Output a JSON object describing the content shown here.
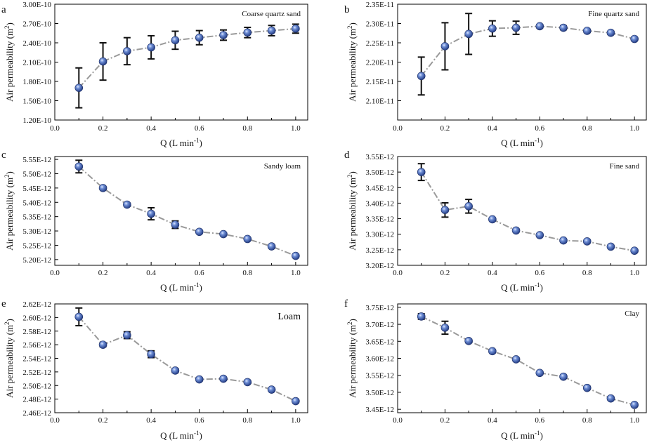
{
  "chart_data": [
    {
      "panel": "a",
      "type": "scatter",
      "title": "Coarse quartz sand",
      "xlabel": "Q (L min",
      "xlabel_sup": "-1",
      "ylabel": "Air permeability (m",
      "ylabel_sup": "2",
      "xlim": [
        0,
        1.05
      ],
      "xticks": [
        "0.0",
        "0.2",
        "0.4",
        "0.6",
        "0.8",
        "1.0"
      ],
      "ylim": [
        1.2e-10,
        3e-10
      ],
      "yticks": [
        "1.20E-10",
        "1.50E-10",
        "1.80E-10",
        "2.10E-10",
        "2.40E-10",
        "2.70E-10",
        "3.00E-10"
      ],
      "x": [
        0.1,
        0.2,
        0.3,
        0.4,
        0.5,
        0.6,
        0.7,
        0.8,
        0.9,
        1.0
      ],
      "y": [
        1.7e-10,
        2.11e-10,
        2.27e-10,
        2.33e-10,
        2.44e-10,
        2.48e-10,
        2.52e-10,
        2.56e-10,
        2.59e-10,
        2.62e-10
      ],
      "err": [
        3.1e-11,
        2.9e-11,
        2.1e-11,
        1.8e-11,
        1.4e-11,
        1.1e-11,
        8e-12,
        8e-12,
        8e-12,
        7e-12
      ],
      "legend_size": "small"
    },
    {
      "panel": "b",
      "type": "scatter",
      "title": "Fine quartz sand",
      "xlabel": "Q (L min",
      "xlabel_sup": "-1",
      "ylabel": "Air permeability (m",
      "ylabel_sup": "2",
      "xlim": [
        0,
        1.05
      ],
      "xticks": [
        "0.0",
        "0.2",
        "0.4",
        "0.6",
        "0.8",
        "1.0"
      ],
      "ylim": [
        2.05e-11,
        2.35e-11
      ],
      "yticks": [
        "2.10E-11",
        "2.15E-11",
        "2.20E-11",
        "2.25E-11",
        "2.30E-11",
        "2.35E-11"
      ],
      "x": [
        0.1,
        0.2,
        0.3,
        0.4,
        0.5,
        0.6,
        0.7,
        0.8,
        0.9,
        1.0
      ],
      "y": [
        2.164e-11,
        2.241e-11,
        2.273e-11,
        2.287e-11,
        2.289e-11,
        2.293e-11,
        2.289e-11,
        2.281e-11,
        2.276e-11,
        2.26e-11
      ],
      "err": [
        4.9e-13,
        6.1e-13,
        5.3e-13,
        2e-13,
        1.7e-13,
        4e-14,
        5e-14,
        4e-14,
        4e-14,
        4e-14
      ],
      "legend_size": "small"
    },
    {
      "panel": "c",
      "type": "scatter",
      "title": "Sandy loam",
      "xlabel": "Q (L min",
      "xlabel_sup": "-1",
      "ylabel": "Air permeability (m",
      "ylabel_sup": "2",
      "xlim": [
        0,
        1.05
      ],
      "xticks": [
        "0.0",
        "0.2",
        "0.4",
        "0.6",
        "0.8",
        "1.0"
      ],
      "ylim": [
        5.18e-12,
        5.56e-12
      ],
      "yticks": [
        "5.20E-12",
        "5.25E-12",
        "5.30E-12",
        "5.35E-12",
        "5.40E-12",
        "5.45E-12",
        "5.50E-12",
        "5.55E-12"
      ],
      "x": [
        0.1,
        0.2,
        0.3,
        0.4,
        0.5,
        0.6,
        0.7,
        0.8,
        0.9,
        1.0
      ],
      "y": [
        5.525e-12,
        5.45e-12,
        5.392e-12,
        5.36e-12,
        5.322e-12,
        5.297e-12,
        5.289e-12,
        5.272e-12,
        5.246e-12,
        5.213e-12
      ],
      "err": [
        2.2e-14,
        4e-15,
        5e-15,
        2.1e-14,
        1.3e-14,
        3e-15,
        3e-15,
        3e-15,
        3e-15,
        4e-15
      ],
      "legend_size": "small"
    },
    {
      "panel": "d",
      "type": "scatter",
      "title": "Fine sand",
      "xlabel": "Q (L min",
      "xlabel_sup": "-1",
      "ylabel": "Air permeability (m",
      "ylabel_sup": "2",
      "xlim": [
        0,
        1.05
      ],
      "xticks": [
        "0.0",
        "0.2",
        "0.4",
        "0.6",
        "0.8",
        "1.0"
      ],
      "ylim": [
        3.2e-12,
        3.55e-12
      ],
      "yticks": [
        "3.20E-12",
        "3.25E-12",
        "3.30E-12",
        "3.35E-12",
        "3.40E-12",
        "3.45E-12",
        "3.50E-12",
        "3.55E-12"
      ],
      "x": [
        0.1,
        0.2,
        0.3,
        0.4,
        0.5,
        0.6,
        0.7,
        0.8,
        0.9,
        1.0
      ],
      "y": [
        3.5e-12,
        3.378e-12,
        3.39e-12,
        3.348e-12,
        3.312e-12,
        3.297e-12,
        3.28e-12,
        3.277e-12,
        3.26e-12,
        3.247e-12
      ],
      "err": [
        2.7e-14,
        2.3e-14,
        2.2e-14,
        4e-15,
        4e-15,
        4e-15,
        4e-15,
        4e-15,
        4e-15,
        4e-15
      ],
      "legend_size": "small"
    },
    {
      "panel": "e",
      "type": "scatter",
      "title": "Loam",
      "xlabel": "Q (L min",
      "xlabel_sup": "-1",
      "ylabel": "Air permeability (m",
      "ylabel_sup": "2",
      "xlim": [
        0,
        1.05
      ],
      "xticks": [
        "0.0",
        "0.2",
        "0.4",
        "0.6",
        "0.8",
        "1.0"
      ],
      "ylim": [
        2.46e-12,
        2.62e-12
      ],
      "yticks": [
        "2.46E-12",
        "2.48E-12",
        "2.50E-12",
        "2.52E-12",
        "2.54E-12",
        "2.56E-12",
        "2.58E-12",
        "2.60E-12",
        "2.62E-12"
      ],
      "x": [
        0.1,
        0.2,
        0.3,
        0.4,
        0.5,
        0.6,
        0.7,
        0.8,
        0.9,
        1.0
      ],
      "y": [
        2.601e-12,
        2.56e-12,
        2.574e-12,
        2.546e-12,
        2.522e-12,
        2.509e-12,
        2.51e-12,
        2.505e-12,
        2.494e-12,
        2.477e-12
      ],
      "err": [
        1.3e-14,
        3e-15,
        5e-15,
        5e-15,
        3e-15,
        2e-15,
        2e-15,
        2e-15,
        2e-15,
        2e-15
      ],
      "legend_size": "large"
    },
    {
      "panel": "f",
      "type": "scatter",
      "title": "Clay",
      "xlabel": "Q (L min",
      "xlabel_sup": "-1",
      "ylabel": "Air permeability (m",
      "ylabel_sup": "2",
      "xlim": [
        0,
        1.05
      ],
      "xticks": [
        "0.0",
        "0.2",
        "0.4",
        "0.6",
        "0.8",
        "1.0"
      ],
      "ylim": [
        3.44e-12,
        3.76e-12
      ],
      "yticks": [
        "3.45E-12",
        "3.50E-12",
        "3.55E-12",
        "3.60E-12",
        "3.65E-12",
        "3.70E-12",
        "3.75E-12"
      ],
      "x": [
        0.1,
        0.2,
        0.3,
        0.4,
        0.5,
        0.6,
        0.7,
        0.8,
        0.9,
        1.0
      ],
      "y": [
        3.723e-12,
        3.69e-12,
        3.651e-12,
        3.621e-12,
        3.597e-12,
        3.557e-12,
        3.546e-12,
        3.513e-12,
        3.482e-12,
        3.463e-12
      ],
      "err": [
        8e-15,
        1.9e-14,
        5e-15,
        4e-15,
        4e-15,
        4e-15,
        4e-15,
        4e-15,
        4e-15,
        4e-15
      ],
      "legend_size": "small"
    }
  ],
  "colors": {
    "marker_fill": "#3f5fb0",
    "marker_highlight": "#c9d6f5",
    "line": "#9a9a9a",
    "error_bar": "#111111"
  }
}
